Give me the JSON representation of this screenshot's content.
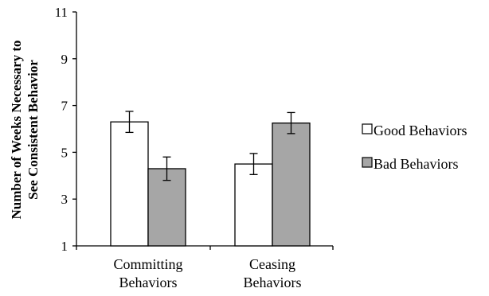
{
  "chart_data": {
    "type": "bar",
    "categories": [
      [
        "Committing",
        "Behaviors"
      ],
      [
        "Ceasing",
        "Behaviors"
      ]
    ],
    "series": [
      {
        "name": "Good Behaviors",
        "values": [
          6.3,
          4.5
        ],
        "errors": [
          0.45,
          0.45
        ],
        "color": "#ffffff"
      },
      {
        "name": "Bad Behaviors",
        "values": [
          4.3,
          6.25
        ],
        "errors": [
          0.5,
          0.45
        ],
        "color": "#a6a6a6"
      }
    ],
    "ylabel": [
      "Number of Weeks Necessary to",
      "See Consistent Behavior"
    ],
    "ylim": [
      1,
      11
    ],
    "yticks": [
      1,
      3,
      5,
      7,
      9,
      11
    ],
    "legend": "right",
    "grid": false
  }
}
